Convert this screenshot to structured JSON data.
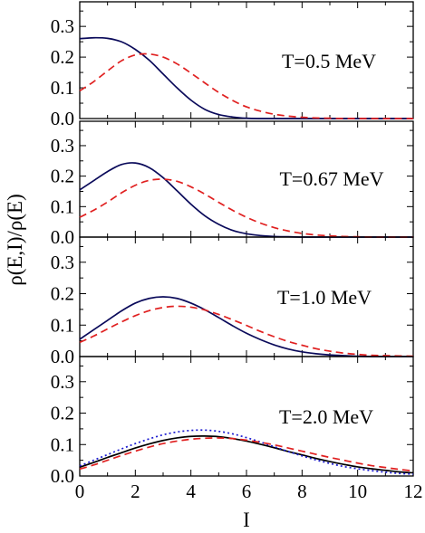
{
  "chart_data": {
    "type": "line",
    "layout": "4 vertically stacked panels sharing x axis",
    "xlabel": "I",
    "ylabel": "ρ(E,I)/ρ(E)",
    "xlim": [
      0,
      12
    ],
    "ylim": [
      0,
      0.38
    ],
    "x_ticks": [
      "0",
      "2",
      "4",
      "6",
      "8",
      "10",
      "12"
    ],
    "y_ticks": [
      "0.0",
      "0.1",
      "0.2",
      "0.3"
    ],
    "grid": false,
    "legend": "none",
    "x": [
      0,
      0.5,
      1,
      1.5,
      2,
      2.5,
      3,
      3.5,
      4,
      4.5,
      5,
      5.5,
      6,
      6.5,
      7,
      7.5,
      8,
      8.5,
      9,
      9.5,
      10,
      10.5,
      11,
      11.5,
      12
    ],
    "panels": [
      {
        "label": "T=0.5 MeV",
        "series": [
          {
            "style": "solid",
            "color": "#0a0a5a",
            "values": [
              0.26,
              0.263,
              0.261,
              0.25,
              0.225,
              0.19,
              0.145,
              0.1,
              0.06,
              0.03,
              0.013,
              0.005,
              0.001,
              0,
              0,
              0,
              0,
              0,
              0,
              0,
              0,
              0,
              0,
              0,
              0
            ]
          },
          {
            "style": "dashed",
            "color": "#e02020",
            "values": [
              0.09,
              0.12,
              0.155,
              0.188,
              0.207,
              0.21,
              0.2,
              0.178,
              0.148,
              0.116,
              0.085,
              0.059,
              0.038,
              0.024,
              0.014,
              0.008,
              0.004,
              0.002,
              0.001,
              0,
              0,
              0,
              0,
              0,
              0
            ]
          }
        ]
      },
      {
        "label": "T=0.67 MeV",
        "series": [
          {
            "style": "solid",
            "color": "#0a0a5a",
            "values": [
              0.155,
              0.185,
              0.215,
              0.238,
              0.243,
              0.228,
              0.195,
              0.152,
              0.108,
              0.07,
              0.042,
              0.022,
              0.011,
              0.005,
              0.002,
              0.001,
              0,
              0,
              0,
              0,
              0,
              0,
              0,
              0,
              0
            ]
          },
          {
            "style": "dashed",
            "color": "#e02020",
            "values": [
              0.065,
              0.088,
              0.115,
              0.145,
              0.17,
              0.186,
              0.19,
              0.183,
              0.165,
              0.141,
              0.114,
              0.088,
              0.065,
              0.046,
              0.031,
              0.02,
              0.012,
              0.007,
              0.004,
              0.002,
              0.001,
              0,
              0,
              0,
              0
            ]
          }
        ]
      },
      {
        "label": "T=1.0 MeV",
        "series": [
          {
            "style": "solid",
            "color": "#0a0a5a",
            "values": [
              0.055,
              0.085,
              0.115,
              0.145,
              0.17,
              0.185,
              0.19,
              0.185,
              0.17,
              0.149,
              0.124,
              0.098,
              0.074,
              0.054,
              0.037,
              0.024,
              0.015,
              0.009,
              0.005,
              0.003,
              0.001,
              0,
              0,
              0,
              0
            ]
          },
          {
            "style": "dashed",
            "color": "#e02020",
            "values": [
              0.045,
              0.065,
              0.088,
              0.11,
              0.13,
              0.146,
              0.156,
              0.16,
              0.157,
              0.148,
              0.134,
              0.117,
              0.099,
              0.08,
              0.063,
              0.048,
              0.036,
              0.025,
              0.017,
              0.011,
              0.007,
              0.004,
              0.003,
              0.002,
              0.001
            ]
          }
        ]
      },
      {
        "label": "T=2.0 MeV",
        "series": [
          {
            "style": "solid",
            "color": "#000000",
            "values": [
              0.028,
              0.043,
              0.059,
              0.074,
              0.089,
              0.102,
              0.113,
              0.121,
              0.126,
              0.127,
              0.125,
              0.119,
              0.111,
              0.101,
              0.09,
              0.078,
              0.067,
              0.056,
              0.046,
              0.037,
              0.029,
              0.023,
              0.018,
              0.013,
              0.01
            ]
          },
          {
            "style": "dotted",
            "color": "#1a1ad0",
            "values": [
              0.032,
              0.05,
              0.068,
              0.086,
              0.103,
              0.118,
              0.131,
              0.14,
              0.145,
              0.146,
              0.142,
              0.134,
              0.122,
              0.108,
              0.093,
              0.078,
              0.064,
              0.051,
              0.04,
              0.03,
              0.023,
              0.017,
              0.012,
              0.008,
              0.006
            ]
          },
          {
            "style": "dashed",
            "color": "#e02020",
            "values": [
              0.022,
              0.035,
              0.05,
              0.065,
              0.079,
              0.092,
              0.103,
              0.111,
              0.117,
              0.12,
              0.121,
              0.119,
              0.114,
              0.107,
              0.099,
              0.089,
              0.079,
              0.069,
              0.059,
              0.05,
              0.041,
              0.033,
              0.027,
              0.021,
              0.016
            ]
          }
        ]
      }
    ]
  }
}
